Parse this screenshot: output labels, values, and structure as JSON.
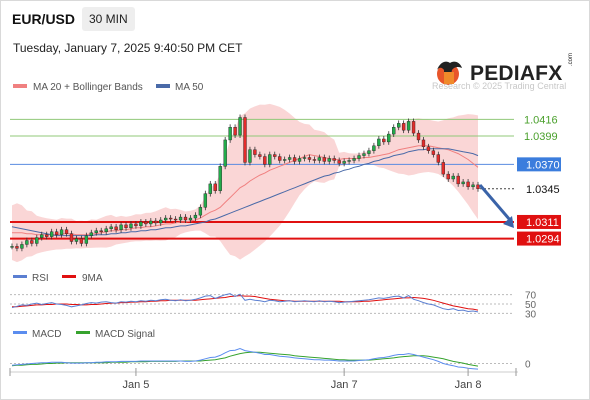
{
  "header": {
    "symbol": "EUR/USD",
    "timeframe": "30 MIN",
    "timestamp": "Tuesday, January 7, 2025 9:40:50 PM CET"
  },
  "branding": {
    "logo_text": "PEDIAFX",
    "logo_suffix": ".com",
    "copyright": "Research © 2025 Trading Central"
  },
  "colors": {
    "bull": "#22ab4a",
    "bear": "#e32b2b",
    "ma20": "#f08080",
    "ma50": "#4a6aa8",
    "band": "#f8c8c8",
    "support": "#e01010",
    "resistance": "#90c878",
    "current": "#5a8be0",
    "arrow": "#3a63a8",
    "rsi": "#5b7fd1",
    "rsi_ma": "#e01010",
    "macd": "#5b8def",
    "macd_signal": "#37a32e"
  },
  "chart_data": [
    {
      "type": "candlestick",
      "legend": [
        "MA 20 + Bollinger Bands",
        "MA 50"
      ],
      "ylim": [
        1.027,
        1.044
      ],
      "x_ticks": [
        "Jan 5",
        "Jan 7",
        "Jan 8"
      ],
      "levels": [
        {
          "name": "resistance-2",
          "value": 1.0416,
          "label": "1.0416",
          "style": "resistance"
        },
        {
          "name": "resistance-1",
          "value": 1.0399,
          "label": "1.0399",
          "style": "resistance"
        },
        {
          "name": "pivot",
          "value": 1.037,
          "label": "1.0370",
          "style": "current"
        },
        {
          "name": "last-price",
          "value": 1.0345,
          "label": "1.0345",
          "style": "price"
        },
        {
          "name": "target-1",
          "value": 1.0311,
          "label": "1.0311",
          "style": "support"
        },
        {
          "name": "target-2",
          "value": 1.0294,
          "label": "1.0294",
          "style": "support"
        }
      ],
      "closes": [
        1.0286,
        1.0284,
        1.0288,
        1.0292,
        1.0289,
        1.0295,
        1.0298,
        1.0296,
        1.0301,
        1.0298,
        1.0303,
        1.0299,
        1.0291,
        1.0294,
        1.0289,
        1.0297,
        1.03,
        1.0302,
        1.0301,
        1.0304,
        1.0306,
        1.0303,
        1.0308,
        1.0305,
        1.0309,
        1.0307,
        1.0311,
        1.0309,
        1.0312,
        1.031,
        1.0313,
        1.0315,
        1.0314,
        1.0313,
        1.0316,
        1.0313,
        1.0315,
        1.0318,
        1.0326,
        1.034,
        1.035,
        1.0343,
        1.0368,
        1.0395,
        1.0408,
        1.04,
        1.0418,
        1.0372,
        1.0385,
        1.038,
        1.0378,
        1.037,
        1.038,
        1.0378,
        1.0374,
        1.0375,
        1.0377,
        1.0373,
        1.0376,
        1.0377,
        1.0375,
        1.0374,
        1.0377,
        1.0373,
        1.0376,
        1.0374,
        1.0371,
        1.0373,
        1.0374,
        1.0376,
        1.0379,
        1.0381,
        1.0384,
        1.0389,
        1.0396,
        1.0393,
        1.0401,
        1.0408,
        1.0412,
        1.0405,
        1.0414,
        1.0402,
        1.0395,
        1.0388,
        1.0384,
        1.038,
        1.0372,
        1.036,
        1.0355,
        1.0358,
        1.035,
        1.0352,
        1.0347,
        1.0349,
        1.0345
      ],
      "ma20": [
        1.03,
        1.03,
        1.03,
        1.0299,
        1.0299,
        1.0298,
        1.0298,
        1.0298,
        1.0298,
        1.0298,
        1.0299,
        1.0299,
        1.0299,
        1.0298,
        1.0298,
        1.0298,
        1.0299,
        1.0299,
        1.03,
        1.0301,
        1.0302,
        1.0302,
        1.0303,
        1.0303,
        1.0304,
        1.0305,
        1.0305,
        1.0306,
        1.0306,
        1.0307,
        1.0308,
        1.0309,
        1.0309,
        1.031,
        1.0311,
        1.0311,
        1.0312,
        1.0313,
        1.0315,
        1.0318,
        1.0321,
        1.0323,
        1.0326,
        1.0331,
        1.0336,
        1.0341,
        1.0346,
        1.0349,
        1.0353,
        1.0356,
        1.0359,
        1.0361,
        1.0364,
        1.0366,
        1.0368,
        1.037,
        1.0372,
        1.0374,
        1.0376,
        1.0378,
        1.038,
        1.0379,
        1.0378,
        1.0377,
        1.0376,
        1.0375,
        1.0375,
        1.0376,
        1.0376,
        1.0376,
        1.0376,
        1.0377,
        1.0377,
        1.0378,
        1.0379,
        1.038,
        1.0381,
        1.0383,
        1.0385,
        1.0386,
        1.0387,
        1.0388,
        1.0389,
        1.0389,
        1.0389,
        1.0388,
        1.0387,
        1.0386,
        1.0385,
        1.0383,
        1.0381,
        1.0378,
        1.0375,
        1.0371,
        1.0367
      ],
      "ma50": [
        1.0306,
        1.0305,
        1.0304,
        1.0303,
        1.0302,
        1.0301,
        1.03,
        1.0299,
        1.0298,
        1.0297,
        1.0297,
        1.0297,
        1.0297,
        1.0297,
        1.0297,
        1.0297,
        1.0297,
        1.0298,
        1.0298,
        1.0298,
        1.0299,
        1.0299,
        1.03,
        1.03,
        1.0301,
        1.0301,
        1.0302,
        1.0302,
        1.0303,
        1.0303,
        1.0304,
        1.0305,
        1.0305,
        1.0306,
        1.0307,
        1.0307,
        1.0308,
        1.0309,
        1.031,
        1.0311,
        1.0313,
        1.0314,
        1.0316,
        1.0318,
        1.032,
        1.0322,
        1.0324,
        1.0326,
        1.0328,
        1.033,
        1.0332,
        1.0334,
        1.0336,
        1.0338,
        1.034,
        1.0342,
        1.0344,
        1.0346,
        1.0348,
        1.035,
        1.0352,
        1.0354,
        1.0356,
        1.0358,
        1.0359,
        1.0361,
        1.0362,
        1.0364,
        1.0365,
        1.0367,
        1.0368,
        1.037,
        1.0371,
        1.0373,
        1.0374,
        1.0376,
        1.0377,
        1.0379,
        1.038,
        1.0381,
        1.0383,
        1.0384,
        1.0385,
        1.0385,
        1.0386,
        1.0386,
        1.0386,
        1.0386,
        1.0386,
        1.0385,
        1.0384,
        1.0383,
        1.0382,
        1.0381,
        1.0379
      ]
    },
    {
      "type": "line",
      "legend": [
        "RSI",
        "9MA"
      ],
      "levels": [
        "70",
        "50",
        "30"
      ],
      "ylim": [
        20,
        80
      ],
      "rsi": [
        42,
        45,
        48,
        47,
        50,
        52,
        49,
        51,
        53,
        50,
        49,
        47,
        44,
        46,
        48,
        51,
        53,
        52,
        54,
        55,
        53,
        52,
        55,
        54,
        56,
        55,
        57,
        56,
        58,
        57,
        59,
        60,
        58,
        57,
        59,
        57,
        58,
        60,
        63,
        67,
        68,
        62,
        66,
        70,
        72,
        66,
        71,
        58,
        60,
        58,
        57,
        55,
        58,
        57,
        55,
        56,
        57,
        55,
        56,
        57,
        56,
        55,
        57,
        55,
        56,
        55,
        53,
        54,
        55,
        56,
        57,
        58,
        59,
        61,
        63,
        62,
        64,
        66,
        67,
        63,
        68,
        60,
        57,
        53,
        50,
        48,
        44,
        40,
        38,
        40,
        36,
        37,
        34,
        35,
        33
      ],
      "ma9": [
        44,
        44,
        45,
        46,
        47,
        48,
        48,
        49,
        49,
        50,
        50,
        50,
        49,
        49,
        48,
        48,
        49,
        49,
        50,
        51,
        52,
        52,
        53,
        53,
        54,
        54,
        55,
        55,
        56,
        56,
        57,
        57,
        58,
        58,
        58,
        58,
        58,
        58,
        59,
        60,
        61,
        62,
        63,
        64,
        66,
        67,
        68,
        67,
        67,
        66,
        64,
        62,
        60,
        59,
        58,
        57,
        57,
        56,
        56,
        56,
        56,
        56,
        56,
        56,
        56,
        56,
        56,
        55,
        55,
        55,
        55,
        56,
        56,
        57,
        58,
        59,
        60,
        61,
        62,
        63,
        63,
        64,
        63,
        62,
        60,
        58,
        55,
        52,
        49,
        46,
        44,
        42,
        40,
        39,
        37
      ]
    },
    {
      "type": "line",
      "legend": [
        "MACD",
        "MACD Signal"
      ],
      "levels": [
        "0"
      ],
      "ylim": [
        -0.0015,
        0.005
      ],
      "macd": [
        -0.0004,
        -0.0003,
        -0.0002,
        -0.0001,
        0.0,
        0.0001,
        0.0002,
        0.0002,
        0.0003,
        0.0003,
        0.0003,
        0.0002,
        0.0001,
        0.0001,
        0.0001,
        0.0002,
        0.0002,
        0.0003,
        0.0003,
        0.0004,
        0.0004,
        0.0004,
        0.0005,
        0.0005,
        0.0005,
        0.0005,
        0.0006,
        0.0006,
        0.0006,
        0.0006,
        0.0006,
        0.0006,
        0.0006,
        0.0006,
        0.0006,
        0.0005,
        0.0005,
        0.0006,
        0.0008,
        0.0011,
        0.0014,
        0.0015,
        0.0019,
        0.0025,
        0.003,
        0.0031,
        0.0035,
        0.003,
        0.0028,
        0.0026,
        0.0024,
        0.0021,
        0.0021,
        0.0019,
        0.0017,
        0.0016,
        0.0015,
        0.0013,
        0.0012,
        0.0011,
        0.001,
        0.0009,
        0.0009,
        0.0008,
        0.0008,
        0.0007,
        0.0006,
        0.0006,
        0.0006,
        0.0006,
        0.0007,
        0.0008,
        0.0009,
        0.0011,
        0.0013,
        0.0014,
        0.0016,
        0.0019,
        0.0021,
        0.0021,
        0.0023,
        0.0021,
        0.0018,
        0.0015,
        0.0012,
        0.0009,
        0.0005,
        0.0,
        -0.0003,
        -0.0005,
        -0.0008,
        -0.0009,
        -0.0011,
        -0.0012,
        -0.0013
      ],
      "signal": [
        -0.0005,
        -0.0004,
        -0.0004,
        -0.0003,
        -0.0002,
        -0.0002,
        -0.0001,
        0.0,
        0.0,
        0.0001,
        0.0001,
        0.0002,
        0.0002,
        0.0002,
        0.0002,
        0.0002,
        0.0002,
        0.0002,
        0.0002,
        0.0002,
        0.0003,
        0.0003,
        0.0003,
        0.0003,
        0.0004,
        0.0004,
        0.0004,
        0.0004,
        0.0005,
        0.0005,
        0.0005,
        0.0005,
        0.0005,
        0.0005,
        0.0006,
        0.0006,
        0.0006,
        0.0006,
        0.0006,
        0.0007,
        0.0008,
        0.0009,
        0.0011,
        0.0013,
        0.0017,
        0.002,
        0.0023,
        0.0025,
        0.0026,
        0.0026,
        0.0026,
        0.0025,
        0.0024,
        0.0023,
        0.0022,
        0.0021,
        0.002,
        0.0018,
        0.0017,
        0.0016,
        0.0015,
        0.0014,
        0.0013,
        0.0012,
        0.0011,
        0.001,
        0.0009,
        0.0009,
        0.0008,
        0.0008,
        0.0008,
        0.0008,
        0.0008,
        0.0009,
        0.001,
        0.0011,
        0.0012,
        0.0013,
        0.0015,
        0.0016,
        0.0017,
        0.0018,
        0.0018,
        0.0018,
        0.0017,
        0.0015,
        0.0013,
        0.0011,
        0.0008,
        0.0005,
        0.0003,
        0.0001,
        -0.0002,
        -0.0004,
        -0.0006
      ]
    }
  ]
}
